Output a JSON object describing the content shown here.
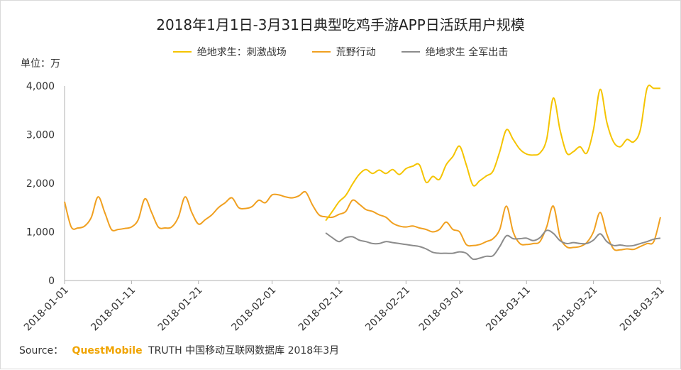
{
  "page": {
    "title": "2018年1月1日-3月31日典型吃鸡手游APP日活跃用户规模",
    "unit_label": "单位：万",
    "source_prefix": "Source：",
    "source_brand": "QuestMobile",
    "source_rest": "TRUTH 中国移动互联网数据库 2018年3月"
  },
  "chart_data": {
    "type": "line",
    "title": "2018年1月1日-3月31日典型吃鸡手游APP日活跃用户规模",
    "ylabel": "单位：万",
    "ylim": [
      0,
      4000
    ],
    "yticks": [
      0,
      1000,
      2000,
      3000,
      4000
    ],
    "ytick_labels": [
      "0",
      "1,000",
      "2,000",
      "3,000",
      "4,000"
    ],
    "x_start": 0,
    "x_end": 89,
    "xtick_days": [
      0,
      10,
      20,
      31,
      41,
      51,
      59,
      69,
      79,
      89
    ],
    "xtick_labels": [
      "2018-01-01",
      "2018-01-11",
      "2018-01-21",
      "2018-02-01",
      "2018-02-11",
      "2018-02-21",
      "2018-03-01",
      "2018-03-11",
      "2018-03-21",
      "2018-03-31"
    ],
    "grid": false,
    "legend_position": "top-center",
    "series": [
      {
        "name": "绝地求生：刺激战场",
        "color": "#f5c400",
        "x": [
          39,
          40,
          41,
          42,
          43,
          44,
          45,
          46,
          47,
          48,
          49,
          50,
          51,
          52,
          53,
          54,
          55,
          56,
          57,
          58,
          59,
          60,
          61,
          62,
          63,
          64,
          65,
          66,
          67,
          68,
          69,
          70,
          71,
          72,
          73,
          74,
          75,
          76,
          77,
          78,
          79,
          80,
          81,
          82,
          83,
          84,
          85,
          86,
          87,
          88,
          89
        ],
        "values": [
          1230,
          1420,
          1620,
          1750,
          1980,
          2180,
          2280,
          2200,
          2270,
          2200,
          2280,
          2180,
          2300,
          2350,
          2380,
          2020,
          2140,
          2080,
          2380,
          2550,
          2760,
          2380,
          1960,
          2050,
          2150,
          2250,
          2650,
          3100,
          2900,
          2700,
          2600,
          2580,
          2620,
          2900,
          3750,
          3100,
          2620,
          2650,
          2750,
          2620,
          3100,
          3930,
          3250,
          2850,
          2750,
          2900,
          2850,
          3100,
          3950,
          3950,
          3950
        ]
      },
      {
        "name": "荒野行动",
        "color": "#f0a020",
        "x": [
          0,
          1,
          2,
          3,
          4,
          5,
          6,
          7,
          8,
          9,
          10,
          11,
          12,
          13,
          14,
          15,
          16,
          17,
          18,
          19,
          20,
          21,
          22,
          23,
          24,
          25,
          26,
          27,
          28,
          29,
          30,
          31,
          32,
          33,
          34,
          35,
          36,
          37,
          38,
          39,
          40,
          41,
          42,
          43,
          44,
          45,
          46,
          47,
          48,
          49,
          50,
          51,
          52,
          53,
          54,
          55,
          56,
          57,
          58,
          59,
          60,
          61,
          62,
          63,
          64,
          65,
          66,
          67,
          68,
          69,
          70,
          71,
          72,
          73,
          74,
          75,
          76,
          77,
          78,
          79,
          80,
          81,
          82,
          83,
          84,
          85,
          86,
          87,
          88,
          89
        ],
        "values": [
          1620,
          1100,
          1080,
          1120,
          1300,
          1720,
          1400,
          1050,
          1050,
          1070,
          1100,
          1250,
          1680,
          1400,
          1100,
          1080,
          1100,
          1300,
          1720,
          1400,
          1160,
          1250,
          1350,
          1500,
          1600,
          1700,
          1500,
          1480,
          1520,
          1650,
          1600,
          1760,
          1760,
          1720,
          1700,
          1740,
          1820,
          1560,
          1350,
          1310,
          1300,
          1360,
          1420,
          1650,
          1570,
          1460,
          1420,
          1350,
          1300,
          1180,
          1120,
          1100,
          1120,
          1080,
          1050,
          1000,
          1050,
          1200,
          1050,
          1000,
          740,
          720,
          740,
          800,
          860,
          1050,
          1530,
          1000,
          760,
          740,
          760,
          800,
          1100,
          1530,
          900,
          690,
          680,
          700,
          780,
          1000,
          1400,
          950,
          650,
          630,
          650,
          640,
          700,
          760,
          800,
          1300
        ]
      },
      {
        "name": "绝地求生 全军出击",
        "color": "#8c8c8c",
        "x": [
          39,
          40,
          41,
          42,
          43,
          44,
          45,
          46,
          47,
          48,
          49,
          50,
          51,
          52,
          53,
          54,
          55,
          56,
          57,
          58,
          59,
          60,
          61,
          62,
          63,
          64,
          65,
          66,
          67,
          68,
          69,
          70,
          71,
          72,
          73,
          74,
          75,
          76,
          77,
          78,
          79,
          80,
          81,
          82,
          83,
          84,
          85,
          86,
          87,
          88,
          89
        ],
        "values": [
          980,
          880,
          800,
          880,
          900,
          830,
          800,
          760,
          760,
          800,
          780,
          760,
          740,
          720,
          700,
          650,
          580,
          560,
          560,
          560,
          590,
          560,
          440,
          460,
          500,
          510,
          700,
          920,
          860,
          860,
          870,
          820,
          880,
          1030,
          970,
          820,
          760,
          780,
          760,
          760,
          830,
          960,
          800,
          720,
          730,
          710,
          720,
          760,
          800,
          850,
          870
        ]
      }
    ]
  }
}
